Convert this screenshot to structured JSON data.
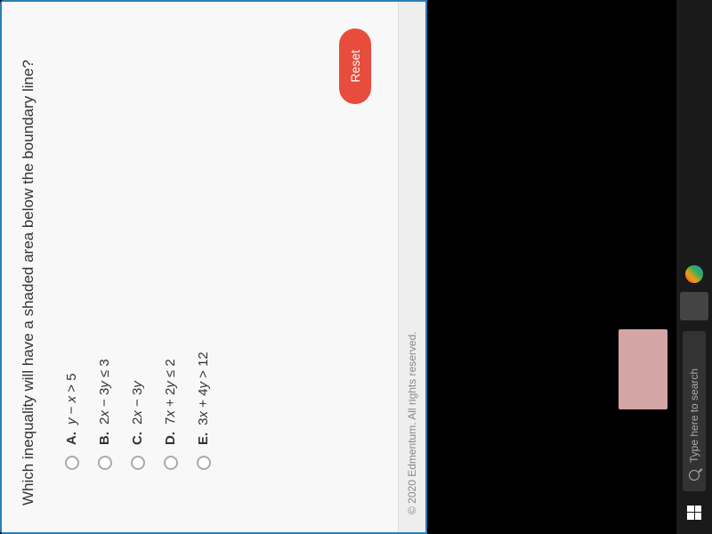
{
  "question": {
    "text": "Which inequality will have a shaded area below the boundary line?",
    "options": [
      {
        "label": "A.",
        "expr_html": "<span class='italic'>y</span> − <span class='italic'>x</span> > 5"
      },
      {
        "label": "B.",
        "expr_html": "2<span class='italic'>x</span> − 3<span class='italic'>y</span> ≤ 3"
      },
      {
        "label": "C.",
        "expr_html": "2<span class='italic'>x</span> − 3<span class='italic'>y</span>"
      },
      {
        "label": "D.",
        "expr_html": "7<span class='italic'>x</span> + 2<span class='italic'>y</span> ≤ 2"
      },
      {
        "label": "E.",
        "expr_html": "3<span class='italic'>x</span> + 4<span class='italic'>y</span> > 12"
      }
    ]
  },
  "reset_label": "Reset",
  "copyright": "© 2020 Edmentum. All rights reserved.",
  "taskbar": {
    "search_placeholder": "Type here to search"
  },
  "colors": {
    "reset_bg": "#e74c3c",
    "window_border": "#2a7fb8",
    "content_bg": "#f8f8f8"
  }
}
